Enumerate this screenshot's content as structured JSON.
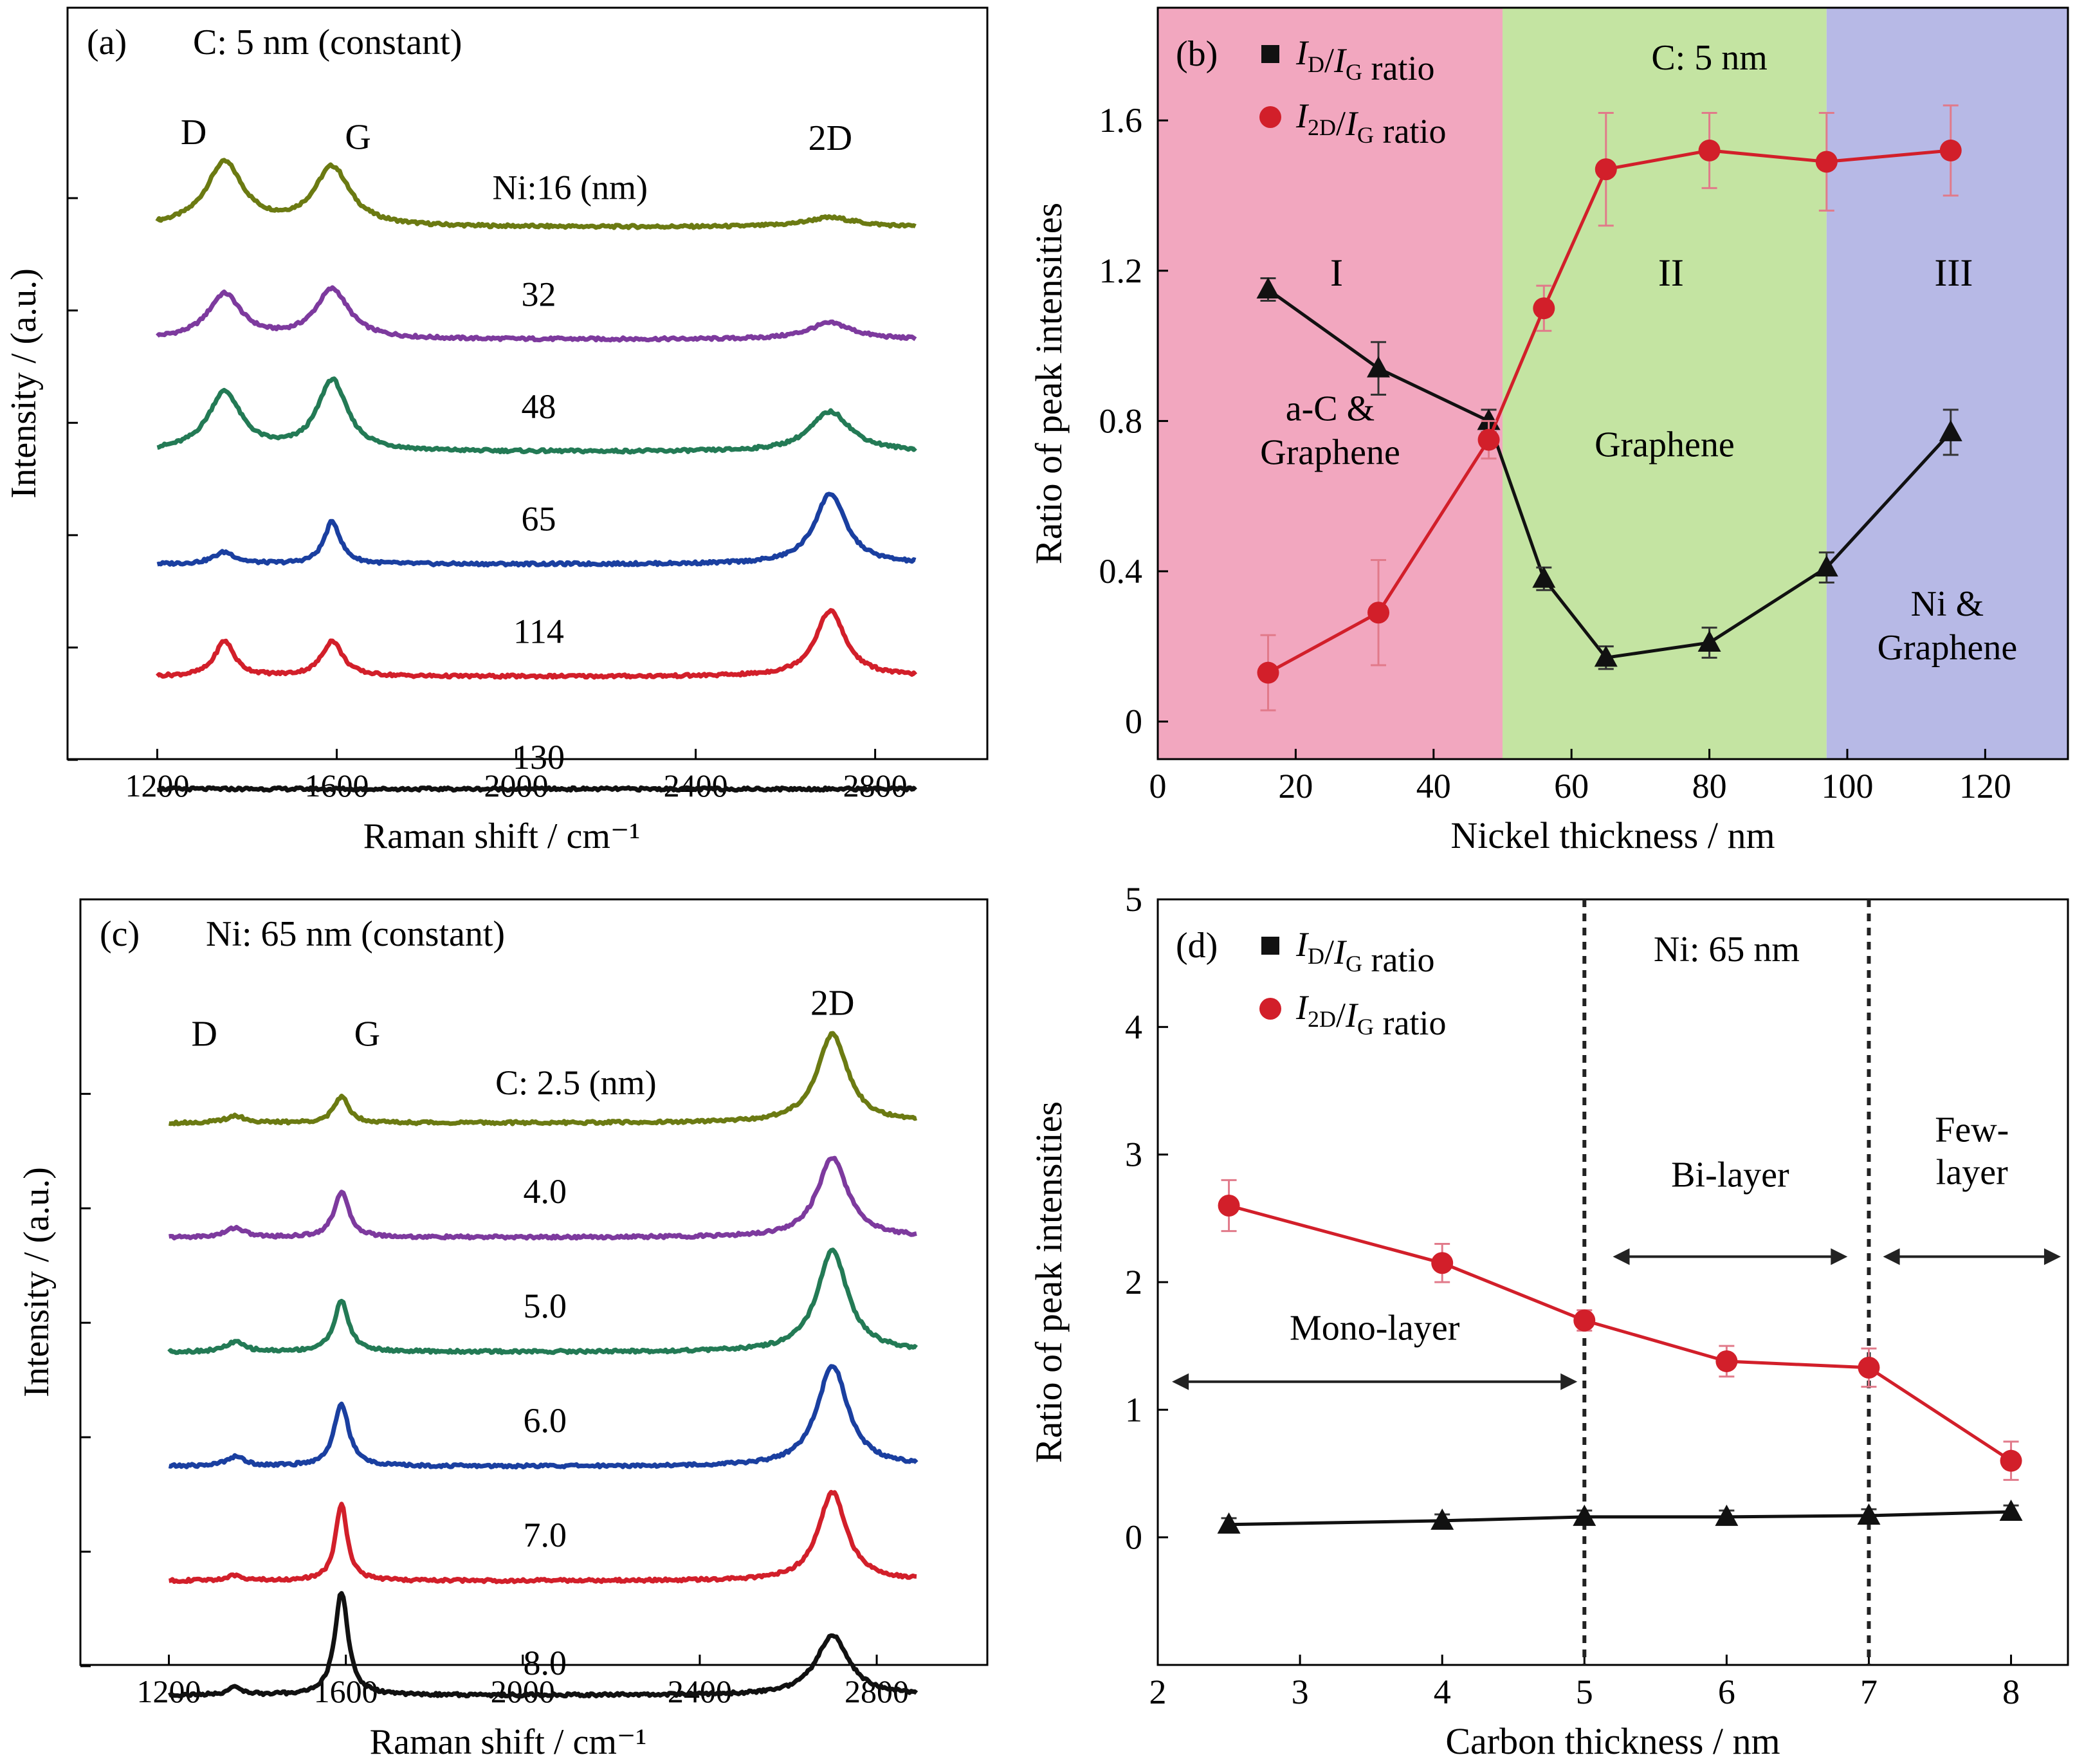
{
  "chart_data": [
    {
      "panel": "(a)",
      "type": "line",
      "subtitle": "C: 5 nm (constant)",
      "xlabel": "Raman shift / cm⁻¹",
      "ylabel": "Intensity / (a.u.)",
      "xlim": [
        1000,
        3050
      ],
      "xticks": [
        "1200",
        "1600",
        "2000",
        "2400",
        "2800"
      ],
      "peaks": [
        {
          "label": "D",
          "x": 1350
        },
        {
          "label": "G",
          "x": 1590
        },
        {
          "label": "2D",
          "x": 2700
        }
      ],
      "series": [
        {
          "name": "Ni:16 (nm)",
          "color": "#6b7a12",
          "baseline": 0.1,
          "D": 0.27,
          "G": 0.25,
          "D2": 0.04,
          "wD": 50,
          "wG": 48,
          "w2D": 70
        },
        {
          "name": "32",
          "color": "#7d3a9e",
          "baseline": 0.1,
          "D": 0.19,
          "G": 0.21,
          "D2": 0.07,
          "wD": 45,
          "wG": 45,
          "w2D": 60
        },
        {
          "name": "48",
          "color": "#237a55",
          "baseline": 0.1,
          "D": 0.25,
          "G": 0.3,
          "D2": 0.17,
          "wD": 45,
          "wG": 40,
          "w2D": 55
        },
        {
          "name": "65",
          "color": "#1a3fa0",
          "baseline": 0.1,
          "D": 0.05,
          "G": 0.18,
          "D2": 0.3,
          "wD": 30,
          "wG": 22,
          "w2D": 42
        },
        {
          "name": "114",
          "color": "#d21f2a",
          "baseline": 0.1,
          "D": 0.15,
          "G": 0.15,
          "D2": 0.28,
          "wD": 26,
          "wG": 28,
          "w2D": 40
        },
        {
          "name": "130",
          "color": "#111111",
          "baseline": 0.1,
          "D": 0.0,
          "G": 0.0,
          "D2": 0.0,
          "wD": 40,
          "wG": 40,
          "w2D": 40
        }
      ]
    },
    {
      "panel": "(b)",
      "type": "line",
      "annotation": "C: 5 nm",
      "xlabel": "Nickel thickness / nm",
      "ylabel": "Ratio of peak intensities",
      "xlim": [
        0,
        132
      ],
      "ylim": [
        -0.1,
        1.9
      ],
      "xticks": [
        0,
        20,
        40,
        60,
        80,
        100,
        120
      ],
      "yticks": [
        "0",
        "0.4",
        "0.8",
        "1.2",
        "1.6"
      ],
      "regions": [
        {
          "roman": "I",
          "label": [
            "a-C &",
            "Graphene"
          ],
          "from": 0,
          "to": 50,
          "color": "#f2a7bf"
        },
        {
          "roman": "II",
          "label": [
            "Graphene"
          ],
          "from": 50,
          "to": 97,
          "color": "#c4e4a2"
        },
        {
          "roman": "III",
          "label": [
            "Ni &",
            "Graphene"
          ],
          "from": 97,
          "to": 132,
          "color": "#b7b9e6"
        }
      ],
      "series": [
        {
          "name": "ID/IG ratio",
          "color": "#111111",
          "marker": "triangle",
          "x": [
            16,
            32,
            48,
            56,
            65,
            80,
            97,
            115
          ],
          "y": [
            1.15,
            0.94,
            0.8,
            0.38,
            0.17,
            0.21,
            0.41,
            0.77
          ],
          "err": [
            0.03,
            0.07,
            0.03,
            0.03,
            0.03,
            0.04,
            0.04,
            0.06
          ]
        },
        {
          "name": "I2D/IG ratio",
          "color": "#d21f2a",
          "marker": "circle",
          "x": [
            16,
            32,
            48,
            56,
            65,
            80,
            97,
            115
          ],
          "y": [
            0.13,
            0.29,
            0.75,
            1.1,
            1.47,
            1.52,
            1.49,
            1.52
          ],
          "err": [
            0.1,
            0.14,
            0.05,
            0.06,
            0.15,
            0.1,
            0.13,
            0.12
          ]
        }
      ]
    },
    {
      "panel": "(c)",
      "type": "line",
      "subtitle": "Ni: 65 nm (constant)",
      "xlabel": "Raman shift / cm⁻¹",
      "ylabel": "Intensity / (a.u.)",
      "xlim": [
        1000,
        3050
      ],
      "xticks": [
        "1200",
        "1600",
        "2000",
        "2400",
        "2800"
      ],
      "peaks": [
        {
          "label": "D",
          "x": 1350
        },
        {
          "label": "G",
          "x": 1590
        },
        {
          "label": "2D",
          "x": 2700
        }
      ],
      "series": [
        {
          "name": "C: 2.5 (nm)",
          "color": "#6b7a12",
          "baseline": 0.1,
          "D": 0.03,
          "G": 0.11,
          "D2": 0.37,
          "wD": 25,
          "wG": 20,
          "w2D": 42
        },
        {
          "name": "4.0",
          "color": "#7d3a9e",
          "baseline": 0.1,
          "D": 0.04,
          "G": 0.19,
          "D2": 0.33,
          "wD": 25,
          "wG": 20,
          "w2D": 42
        },
        {
          "name": "5.0",
          "color": "#237a55",
          "baseline": 0.1,
          "D": 0.04,
          "G": 0.21,
          "D2": 0.42,
          "wD": 25,
          "wG": 20,
          "w2D": 42
        },
        {
          "name": "6.0",
          "color": "#1a3fa0",
          "baseline": 0.1,
          "D": 0.04,
          "G": 0.26,
          "D2": 0.42,
          "wD": 25,
          "wG": 20,
          "w2D": 42
        },
        {
          "name": "7.0",
          "color": "#d21f2a",
          "baseline": 0.1,
          "D": 0.02,
          "G": 0.32,
          "D2": 0.37,
          "wD": 25,
          "wG": 16,
          "w2D": 38
        },
        {
          "name": "8.0",
          "color": "#111111",
          "baseline": 0.1,
          "D": 0.03,
          "G": 0.43,
          "D2": 0.25,
          "wD": 22,
          "wG": 18,
          "w2D": 45
        }
      ]
    },
    {
      "panel": "(d)",
      "type": "line",
      "annotation": "Ni: 65 nm",
      "xlabel": "Carbon thickness / nm",
      "ylabel": "Ratio of peak intensities",
      "xlim": [
        2,
        8.4
      ],
      "ylim": [
        -1,
        5
      ],
      "xticks": [
        2,
        3,
        4,
        5,
        6,
        7,
        8
      ],
      "yticks": [
        0,
        1,
        2,
        3,
        4,
        5
      ],
      "vlines": [
        5,
        7
      ],
      "ranges": [
        {
          "label": [
            "Mono-layer"
          ],
          "from": 2.1,
          "to": 4.95
        },
        {
          "label": [
            "Bi-layer"
          ],
          "from": 5.2,
          "to": 6.85
        },
        {
          "label": [
            "Few-",
            "layer"
          ],
          "from": 7.1,
          "to": 8.35
        }
      ],
      "series": [
        {
          "name": "ID/IG ratio",
          "color": "#111111",
          "marker": "triangle",
          "x": [
            2.5,
            4,
            5,
            6,
            7,
            8
          ],
          "y": [
            0.1,
            0.13,
            0.16,
            0.16,
            0.17,
            0.2
          ],
          "err": [
            0.05,
            0.05,
            0.05,
            0.05,
            0.05,
            0.05
          ]
        },
        {
          "name": "I2D/IG ratio",
          "color": "#d21f2a",
          "marker": "circle",
          "x": [
            2.5,
            4,
            5,
            6,
            7,
            8
          ],
          "y": [
            2.6,
            2.15,
            1.7,
            1.38,
            1.33,
            0.6
          ],
          "err": [
            0.2,
            0.15,
            0.08,
            0.12,
            0.15,
            0.15
          ]
        }
      ]
    }
  ]
}
